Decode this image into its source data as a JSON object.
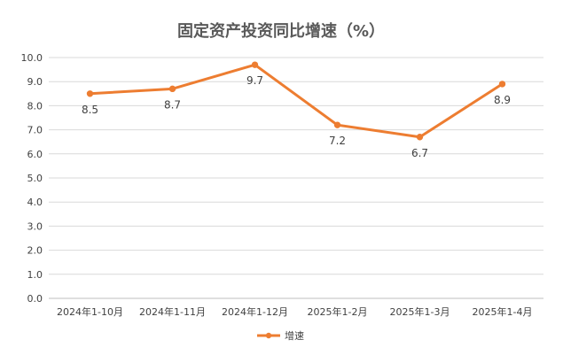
{
  "chart_data": {
    "type": "line",
    "title": "固定资产投资同比增速（%）",
    "categories": [
      "2024年1-10月",
      "2024年1-11月",
      "2024年1-12月",
      "2025年1-2月",
      "2025年1-3月",
      "2025年1-4月"
    ],
    "series": [
      {
        "name": "增速",
        "values": [
          8.5,
          8.7,
          9.7,
          7.2,
          6.7,
          8.9
        ],
        "color": "#ED7D31"
      }
    ],
    "data_labels": [
      "8.5",
      "8.7",
      "9.7",
      "7.2",
      "6.7",
      "8.9"
    ],
    "y_ticks": [
      "0.0",
      "1.0",
      "2.0",
      "3.0",
      "4.0",
      "5.0",
      "6.0",
      "7.0",
      "8.0",
      "9.0",
      "10.0"
    ],
    "ylim": [
      0,
      10
    ],
    "grid": true,
    "legend_position": "bottom"
  }
}
